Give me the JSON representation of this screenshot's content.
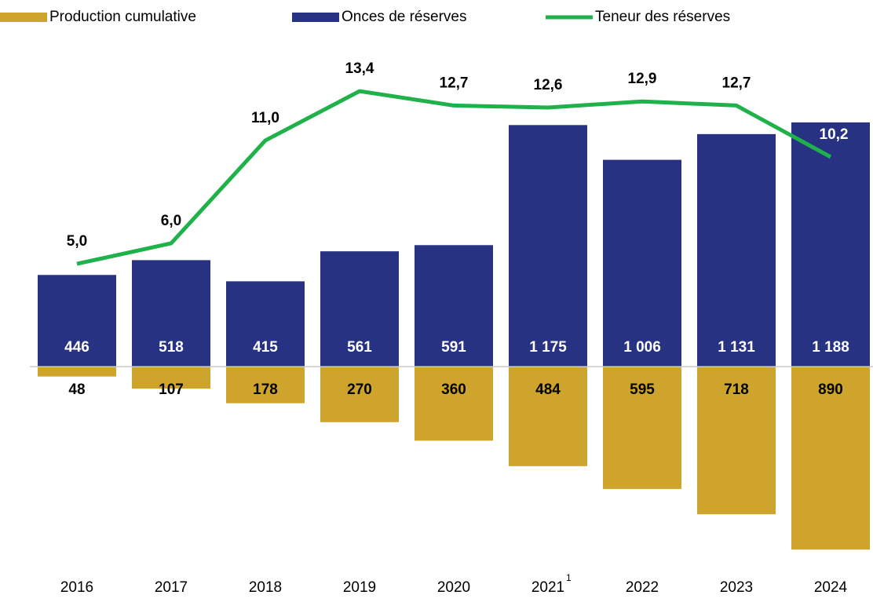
{
  "chart_data": {
    "type": "bar_line",
    "categories": [
      "2016",
      "2017",
      "2018",
      "2019",
      "2020",
      "2021",
      "2022",
      "2023",
      "2024"
    ],
    "category_superscripts": [
      null,
      null,
      null,
      null,
      null,
      "1",
      null,
      null,
      null
    ],
    "ylim": [
      -1000,
      1600
    ],
    "y2lim": [
      -10,
      16
    ],
    "legend": "top",
    "series": [
      {
        "name": "Production cumulative",
        "type": "bar",
        "color": "#cfa42c",
        "direction": "down",
        "label_color": "#000000",
        "values": [
          48,
          107,
          178,
          270,
          360,
          484,
          595,
          718,
          890
        ]
      },
      {
        "name": "Onces de réserves",
        "type": "bar",
        "color": "#283282",
        "direction": "up",
        "label_color": "#ffffff",
        "values": [
          446,
          518,
          415,
          561,
          591,
          1175,
          1006,
          1131,
          1188
        ],
        "value_labels": [
          "446",
          "518",
          "415",
          "561",
          "591",
          "1 175",
          "1 006",
          "1 131",
          "1 188"
        ]
      },
      {
        "name": "Teneur des réserves",
        "type": "line",
        "color": "#1fb24a",
        "axis": "y2",
        "values": [
          5.0,
          6.0,
          11.0,
          13.4,
          12.7,
          12.6,
          12.9,
          12.7,
          10.2
        ],
        "value_labels": [
          "5,0",
          "6,0",
          "11,0",
          "13,4",
          "12,7",
          "12,6",
          "12,9",
          "12,7",
          "10,2"
        ]
      }
    ]
  }
}
